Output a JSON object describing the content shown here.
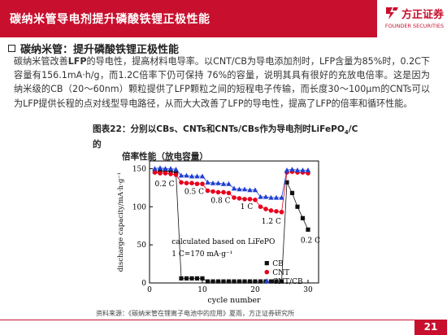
{
  "header": {
    "title": "碳纳米管导电剂提升磷酸铁锂正极性能",
    "logo_cn": "方正证券",
    "logo_en": "FOUNDER SECURITIES"
  },
  "section": {
    "title": "碳纳米管：提升磷酸铁锂正极性能"
  },
  "paragraph": {
    "p1": "碳纳米管改善",
    "p_bold": "LFP",
    "p2": "的导电性，提高材料电导率。以CNT/CB为导电添加剂时，LFP含量为85%时，0.2C下容量有156.1mA·h/g，而1.2C倍率下仍可保持 76%的容量，说明其具有很好的充放电倍率。这是因为纳米级的CB（20～60nm）颗粒提供了LFP颗粒之间的短程电子传输，而长度30～100μm的CNTs可以为LFP提供长程的点对线型导电路径，从而大大改善了LFP的导电性，提高了LFP的倍率和循环性能。"
  },
  "figure": {
    "caption_line1": "图表22：分别以CBs、CNTs和CNTs/CBs作为导电剂时LiFePO",
    "caption_sub": "4",
    "caption_line1_end": "/C的",
    "caption_line2": "倍率性能（放电容量）",
    "source": "资料来源：《碳纳米管在锂离子电池中的应用》夏雨，方正证券研究所"
  },
  "chart_data": {
    "type": "scatter",
    "xlabel": "cycle number",
    "ylabel": "discharge capacity/mA·h·g⁻¹",
    "xlim": [
      0,
      32
    ],
    "ylim": [
      0,
      160
    ],
    "xticks": [
      0,
      10,
      20,
      30
    ],
    "yticks": [
      0,
      50,
      100,
      150
    ],
    "annotations": [
      {
        "text": "0.2 C",
        "x": 1.0,
        "y": 127
      },
      {
        "text": "0.5 C",
        "x": 6.6,
        "y": 117
      },
      {
        "text": "0.8 C",
        "x": 11.6,
        "y": 105
      },
      {
        "text": "1 C",
        "x": 17.2,
        "y": 97
      },
      {
        "text": "1.2 C",
        "x": 21.2,
        "y": 78
      },
      {
        "text": "0.2 C",
        "x": 28.6,
        "y": 53
      },
      {
        "text": "calculated based on LiFePO",
        "x": 4.2,
        "y": 51
      },
      {
        "text": "1 C=170 mA·g⁻¹",
        "x": 4.2,
        "y": 35
      }
    ],
    "legend_position": "bottom-right",
    "series": [
      {
        "name": "CB",
        "marker": "square",
        "color": "#111111",
        "x": [
          1,
          2,
          3,
          4,
          5,
          6,
          7,
          8,
          9,
          10,
          11,
          12,
          13,
          14,
          15,
          16,
          17,
          18,
          19,
          20,
          21,
          22,
          23,
          24,
          25,
          26,
          27,
          28,
          29,
          30
        ],
        "y": [
          146,
          146,
          147,
          146,
          145,
          6,
          6,
          6,
          6,
          6,
          2,
          2,
          2,
          2,
          2,
          2,
          2,
          2,
          2,
          2,
          2,
          2,
          2,
          2,
          2,
          132,
          118,
          100,
          85,
          70
        ]
      },
      {
        "name": "CNT",
        "marker": "circle",
        "color": "#e8001c",
        "x": [
          1,
          2,
          3,
          4,
          5,
          6,
          7,
          8,
          9,
          10,
          11,
          12,
          13,
          14,
          15,
          16,
          17,
          18,
          19,
          20,
          21,
          22,
          23,
          24,
          25,
          26,
          27,
          28,
          29,
          30
        ],
        "y": [
          145,
          144,
          144,
          143,
          142,
          132,
          131,
          131,
          130,
          130,
          121,
          120,
          119,
          119,
          118,
          112,
          111,
          110,
          110,
          109,
          100,
          97,
          95,
          94,
          93,
          145,
          146,
          145,
          145,
          144
        ]
      },
      {
        "name": "CNT/CB",
        "marker": "triangle",
        "color": "#1f3fd1",
        "x": [
          1,
          2,
          3,
          4,
          5,
          6,
          7,
          8,
          9,
          10,
          11,
          12,
          13,
          14,
          15,
          16,
          17,
          18,
          19,
          20,
          21,
          22,
          23,
          24,
          25,
          26,
          27,
          28,
          29,
          30
        ],
        "y": [
          150,
          151,
          150,
          150,
          149,
          141,
          141,
          140,
          140,
          140,
          132,
          131,
          131,
          130,
          130,
          124,
          123,
          123,
          122,
          122,
          113,
          113,
          112,
          112,
          112,
          148,
          149,
          148,
          148,
          148
        ]
      }
    ]
  },
  "footer": {
    "page_number": "21"
  },
  "colors": {
    "brand_red": "#c8102e",
    "text": "#333333"
  }
}
